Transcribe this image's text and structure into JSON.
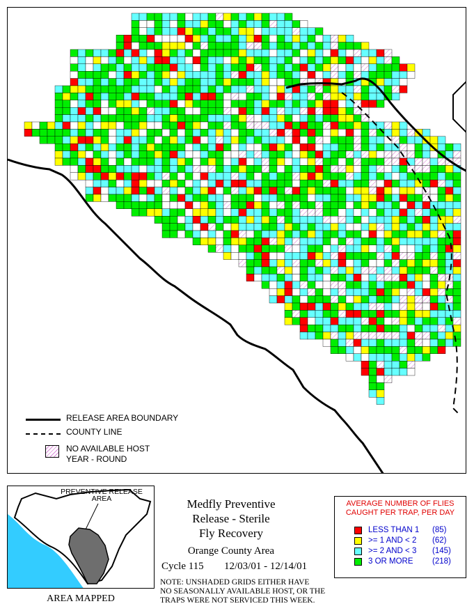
{
  "colors": {
    "less_than_1": "#ff0000",
    "one_to_two": "#ffff00",
    "two_to_three": "#66ffff",
    "three_or_more": "#00ee00",
    "no_host_hatch": "#d98ad9",
    "county_gray": "#707070",
    "ocean": "#33ccff"
  },
  "legend": {
    "release_boundary": "RELEASE AREA BOUNDARY",
    "county_line": "COUNTY LINE",
    "no_host_line1": "NO AVAILABLE HOST",
    "no_host_line2": "YEAR - ROUND"
  },
  "inset": {
    "label_line1": "PREVENTIVE RELEASE",
    "label_line2": "AREA",
    "caption": "AREA MAPPED"
  },
  "title": {
    "line1": "Medfly Preventive",
    "line2": "Release - Sterile",
    "line3": "Fly Recovery",
    "area": "Orange County Area",
    "cycle": "Cycle 115",
    "dates": "12/03/01 - 12/14/01"
  },
  "note": {
    "line1": "NOTE: UNSHADED GRIDS EITHER HAVE",
    "line2": "NO SEASONALLY AVAILABLE HOST, OR THE",
    "line3": "TRAPS WERE NOT SERVICED THIS WEEK."
  },
  "key": {
    "heading_line1": "AVERAGE NUMBER OF FLIES",
    "heading_line2": "CAUGHT PER TRAP, PER DAY",
    "items": [
      {
        "label": "LESS THAN 1",
        "count": "(85)",
        "color_key": "less_than_1"
      },
      {
        "label": ">= 1 AND < 2",
        "count": "(62)",
        "color_key": "one_to_two"
      },
      {
        "label": ">= 2 AND < 3",
        "count": "(145)",
        "color_key": "two_to_three"
      },
      {
        "label": "3 OR MORE",
        "count": "(218)",
        "color_key": "three_or_more"
      }
    ]
  }
}
